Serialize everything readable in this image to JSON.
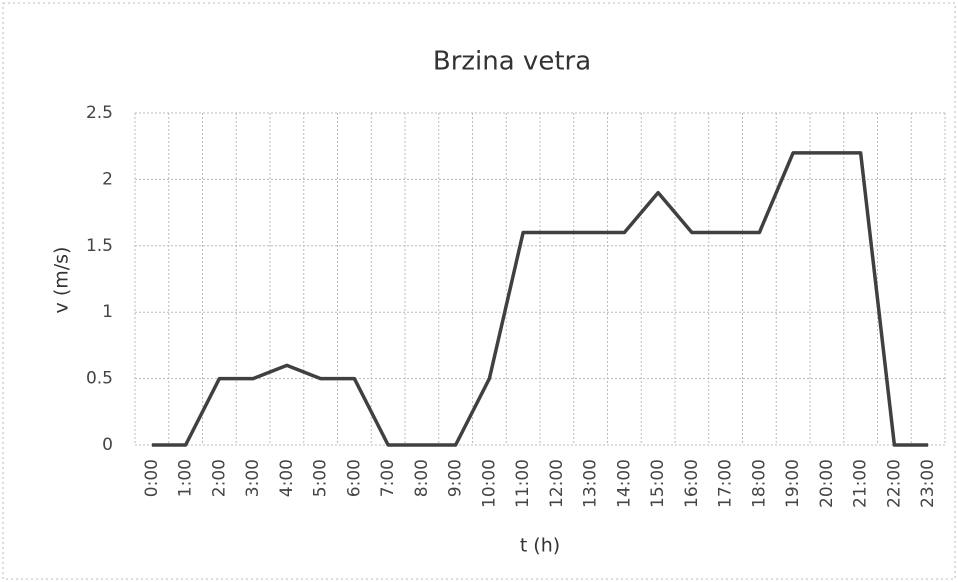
{
  "chart_data": {
    "type": "line",
    "title": "Brzina vetra",
    "x_label": "t (h)",
    "y_label": "v (m/s)",
    "categories": [
      "0:00",
      "1:00",
      "2:00",
      "3:00",
      "4:00",
      "5:00",
      "6:00",
      "7:00",
      "8:00",
      "9:00",
      "10:00",
      "11:00",
      "12:00",
      "13:00",
      "14:00",
      "15:00",
      "16:00",
      "17:00",
      "18:00",
      "19:00",
      "20:00",
      "21:00",
      "22:00",
      "23:00"
    ],
    "series": [
      {
        "name": "v",
        "color": "#404040",
        "values": [
          0,
          0,
          0.5,
          0.5,
          0.6,
          0.5,
          0.5,
          0,
          0,
          0,
          0.5,
          1.6,
          1.6,
          1.6,
          1.6,
          1.9,
          1.6,
          1.6,
          1.6,
          2.2,
          2.2,
          2.2,
          0,
          0
        ]
      }
    ],
    "ylim": [
      0,
      2.5
    ],
    "yticks": [
      0,
      0.5,
      1,
      1.5,
      2,
      2.5
    ],
    "grid": true
  }
}
